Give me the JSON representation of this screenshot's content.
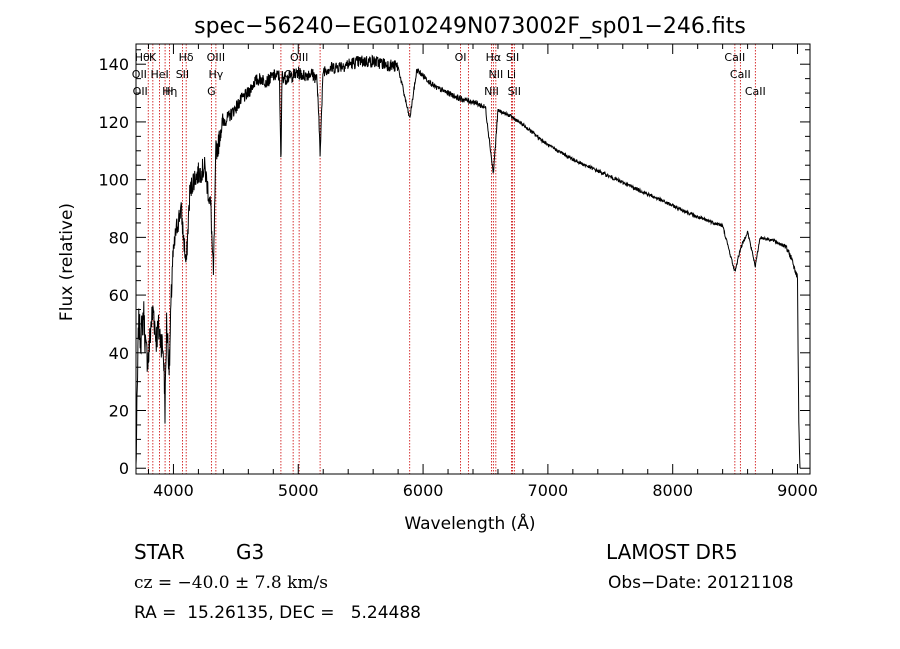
{
  "chart_data": {
    "type": "line",
    "title": "spec−56240−EG010249N073002F_sp01−246.fits",
    "xlabel": "Wavelength (Å)",
    "ylabel": "Flux (relative)",
    "xlim": [
      3700,
      9100
    ],
    "ylim": [
      -2,
      147
    ],
    "x_ticks": [
      4000,
      5000,
      6000,
      7000,
      8000,
      9000
    ],
    "y_ticks": [
      0,
      20,
      40,
      60,
      80,
      100,
      120,
      140
    ],
    "line_color": "#000000",
    "marker_color": "#cc0000",
    "series": [
      {
        "x": [
          3700,
          3720,
          3740,
          3760,
          3780,
          3800,
          3820,
          3840,
          3860,
          3880,
          3900,
          3920,
          3933,
          3945,
          3968,
          3990,
          4020,
          4060,
          4102,
          4130,
          4160,
          4200,
          4250,
          4300,
          4320,
          4340,
          4360,
          4380,
          4400,
          4450,
          4500,
          4550,
          4600,
          4650,
          4700,
          4750,
          4800,
          4850,
          4861,
          4870,
          4900,
          4950,
          5000,
          5050,
          5100,
          5150,
          5175,
          5200,
          5300,
          5400,
          5500,
          5600,
          5700,
          5800,
          5893,
          5950,
          6000,
          6100,
          6200,
          6300,
          6400,
          6500,
          6563,
          6600,
          6700,
          6800,
          7000,
          7200,
          7400,
          7600,
          7800,
          8000,
          8200,
          8400,
          8498,
          8542,
          8600,
          8662,
          8700,
          8800,
          8900,
          8950,
          9000,
          9010,
          9020
        ],
        "y": [
          0,
          50,
          45,
          55,
          40,
          38,
          50,
          55,
          45,
          48,
          45,
          40,
          20,
          50,
          35,
          70,
          82,
          90,
          70,
          95,
          100,
          102,
          104,
          90,
          66,
          110,
          112,
          118,
          120,
          122,
          125,
          128,
          130,
          134,
          135,
          134,
          136,
          136,
          103,
          136,
          135,
          136,
          137,
          136,
          137,
          135,
          110,
          138,
          139,
          140,
          141,
          141,
          140,
          139,
          121,
          138,
          136,
          132,
          130,
          128,
          127,
          125,
          102,
          124,
          122,
          119,
          112,
          107,
          103,
          99,
          95,
          91,
          87,
          84,
          68,
          76,
          82,
          70,
          80,
          79,
          77,
          73,
          66,
          15,
          0
        ]
      }
    ],
    "line_markers": [
      {
        "wl": 3750,
        "label": "Hθ",
        "row": 0
      },
      {
        "wl": 3833,
        "label": "K",
        "row": 0
      },
      {
        "wl": 4102,
        "label": "Hδ",
        "row": 0
      },
      {
        "wl": 4340,
        "label": "OIII",
        "row": 0
      },
      {
        "wl": 5007,
        "label": "OIII",
        "row": 0
      },
      {
        "wl": 6300,
        "label": "OI",
        "row": 0
      },
      {
        "wl": 6563,
        "label": "Hα",
        "row": 0
      },
      {
        "wl": 6717,
        "label": "SII",
        "row": 0
      },
      {
        "wl": 8498,
        "label": "CaII",
        "row": 0
      },
      {
        "wl": 3727,
        "label": "OII",
        "row": 1
      },
      {
        "wl": 3889,
        "label": "HeI",
        "row": 1
      },
      {
        "wl": 4072,
        "label": "SII",
        "row": 1
      },
      {
        "wl": 4340,
        "label": "Hγ",
        "row": 1
      },
      {
        "wl": 4959,
        "label": "OIII",
        "row": 1
      },
      {
        "wl": 6583,
        "label": "NII",
        "row": 1
      },
      {
        "wl": 6708,
        "label": "Li",
        "row": 1
      },
      {
        "wl": 8542,
        "label": "CaII",
        "row": 1
      },
      {
        "wl": 3734,
        "label": "OII",
        "row": 2
      },
      {
        "wl": 3970,
        "label": "Hη",
        "row": 2
      },
      {
        "wl": 3968,
        "label": "H",
        "row": 2
      },
      {
        "wl": 4304,
        "label": "G",
        "row": 2
      },
      {
        "wl": 6548,
        "label": "NII",
        "row": 2
      },
      {
        "wl": 6731,
        "label": "SII",
        "row": 2
      },
      {
        "wl": 8662,
        "label": "CaII",
        "row": 2
      }
    ],
    "extra_marker_lines": [
      3798,
      3835,
      3889,
      3933,
      3968,
      4072,
      4102,
      4304,
      4340,
      4861,
      4959,
      5007,
      5175,
      5893,
      6300,
      6363,
      6548,
      6563,
      6583,
      6708,
      6717,
      6731,
      8498,
      8542,
      8662
    ]
  },
  "info": {
    "object_class": "STAR",
    "subclass": "G3",
    "survey": "LAMOST DR5",
    "cz_line": "cz = −40.0 ± 7.8 km/s",
    "obs_date": "Obs−Date: 20121108",
    "coords_line": "RA =  15.26135, DEC =   5.24488"
  }
}
